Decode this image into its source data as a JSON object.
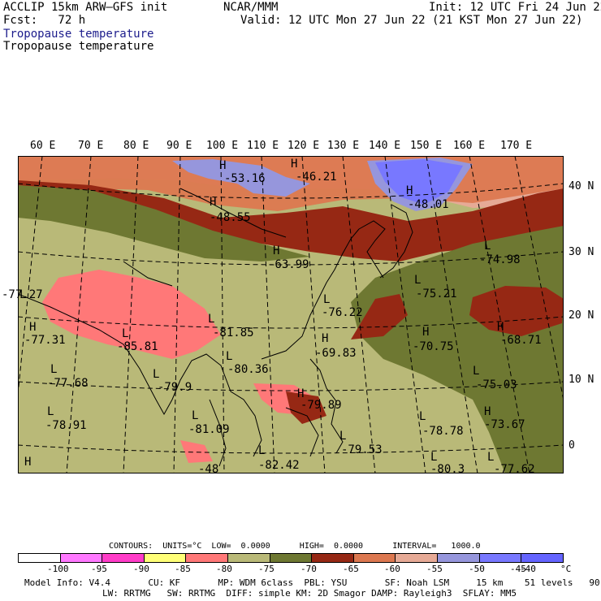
{
  "header": {
    "line1_left": "ACCLIP 15km ARW–GFS init",
    "line1_center": "NCAR/MMM",
    "line1_right": "Init: 12 UTC Fri 24 Jun 22",
    "line2_left": "Fcst:   72 h",
    "line2_right": "Valid: 12 UTC Mon 27 Jun 22 (21 KST Mon 27 Jun 22)",
    "field_title_1": "Tropopause temperature",
    "field_title_2": "Tropopause temperature"
  },
  "map": {
    "lon_labels": [
      "60 E",
      "70 E",
      "80 E",
      "90 E",
      "100 E",
      "110 E",
      "120 E",
      "130 E",
      "140 E",
      "150 E",
      "160 E",
      "170 E"
    ],
    "lat_labels": [
      "40 N",
      "30 N",
      "20 N",
      "10 N",
      "0"
    ],
    "markers": [
      {
        "sym": "H",
        "value": "-53.16"
      },
      {
        "sym": "H",
        "value": "-46.21"
      },
      {
        "sym": "H",
        "value": "-48.55"
      },
      {
        "sym": "H",
        "value": "-48.01"
      },
      {
        "sym": "H",
        "value": "-63.99"
      },
      {
        "sym": "L",
        "value": "-74.98"
      },
      {
        "sym": "L",
        "value": "-77.27"
      },
      {
        "sym": "L",
        "value": "-75.21"
      },
      {
        "sym": "L",
        "value": "-76.22"
      },
      {
        "sym": "H",
        "value": "-77.31"
      },
      {
        "sym": "L",
        "value": "-85.81"
      },
      {
        "sym": "L",
        "value": "-81.85"
      },
      {
        "sym": "H",
        "value": "-69.83"
      },
      {
        "sym": "H",
        "value": "-70.75"
      },
      {
        "sym": "H",
        "value": "-68.71"
      },
      {
        "sym": "L",
        "value": "-80.36"
      },
      {
        "sym": "L",
        "value": "-77.68"
      },
      {
        "sym": "L",
        "value": "-79.9"
      },
      {
        "sym": "L",
        "value": "-75.03"
      },
      {
        "sym": "L",
        "value": "-78.91"
      },
      {
        "sym": "L",
        "value": "-81.09"
      },
      {
        "sym": "H",
        "value": "-79.89"
      },
      {
        "sym": "L",
        "value": "-78.78"
      },
      {
        "sym": "H",
        "value": "-73.67"
      },
      {
        "sym": "L",
        "value": "-79.53"
      },
      {
        "sym": "L",
        "value": "-82.42"
      },
      {
        "sym": "L",
        "value": "-80.3"
      },
      {
        "sym": "L",
        "value": "-77.62"
      },
      {
        "sym": "H",
        "value": "-48"
      }
    ]
  },
  "contours": {
    "text": "CONTOURS:  UNITS=°C  LOW=  0.0000      HIGH=  0.0000      INTERVAL=   1000.0"
  },
  "legend": {
    "colors": [
      "#ffffff",
      "#ff78ff",
      "#ff3cc8",
      "#ffff78",
      "#ff7878",
      "#b9b978",
      "#6e7832",
      "#962814",
      "#dc7850",
      "#e6aa96",
      "#9696dc",
      "#7878ff",
      "#6464ff"
    ],
    "labels": [
      "-100",
      "-95",
      "-90",
      "-85",
      "-80",
      "-75",
      "-70",
      "-65",
      "-60",
      "-55",
      "-50",
      "-45",
      "-40",
      "°C"
    ]
  },
  "footer": {
    "line1": "Model Info: V4.4       CU: KF       MP: WDM 6class  PBL: YSU       SF: Noah LSM     15 km    51 levels   90 sec",
    "line2": "LW: RRTMG   SW: RRTMG  DIFF: simple KM: 2D Smagor DAMP: Rayleigh3  SFLAY: MM5"
  }
}
